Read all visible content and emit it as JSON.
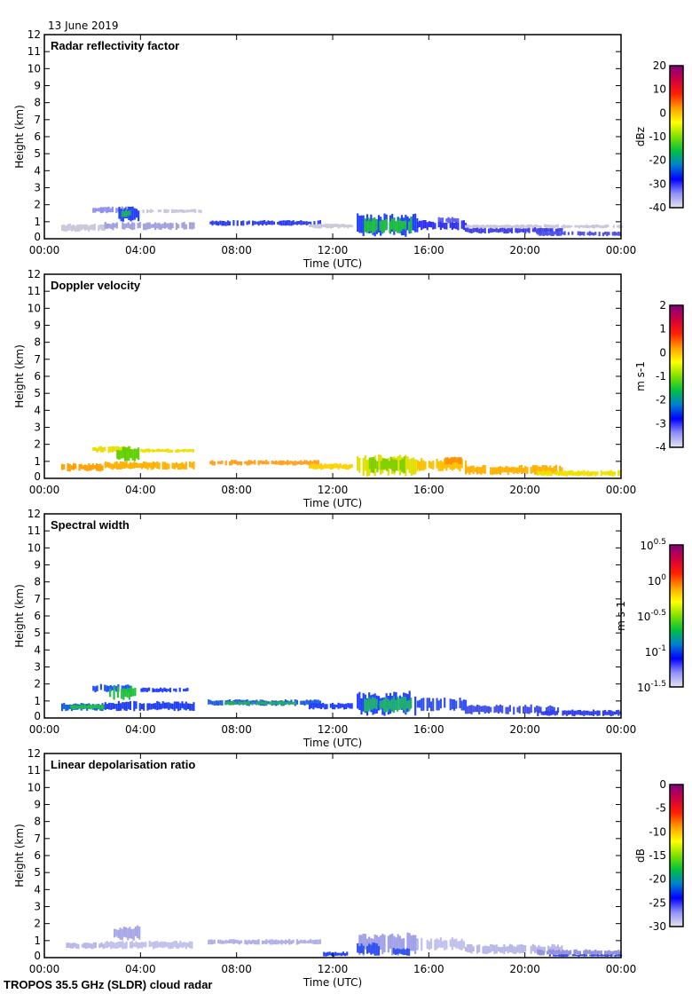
{
  "date_label": "13 June 2019",
  "footer_label": "TROPOS 35.5 GHz (SLDR) cloud radar",
  "chart_data": [
    {
      "type": "heatmap",
      "title": "Radar reflectivity factor",
      "xlabel": "Time (UTC)",
      "ylabel": "Height (km)",
      "xlim": [
        0,
        24
      ],
      "ylim": [
        0,
        12
      ],
      "xticks": [
        "00:00",
        "04:00",
        "08:00",
        "12:00",
        "16:00",
        "20:00",
        "00:00"
      ],
      "yticks": [
        "0",
        "1",
        "2",
        "3",
        "4",
        "5",
        "6",
        "7",
        "8",
        "9",
        "10",
        "11",
        "12"
      ],
      "colorbar": {
        "label": "dBz",
        "ticks": [
          "20",
          "10",
          "0",
          "-10",
          "-20",
          "-30",
          "-40"
        ],
        "range": [
          -40,
          20
        ]
      },
      "regions": [
        [
          0.7,
          2.5,
          0.4,
          0.9,
          "#c8c8d8"
        ],
        [
          2.0,
          3.6,
          1.5,
          1.9,
          "#9090f0"
        ],
        [
          3.0,
          3.9,
          1.0,
          1.9,
          "#2040ff"
        ],
        [
          3.2,
          3.6,
          1.2,
          1.8,
          "#20b060"
        ],
        [
          2.5,
          6.2,
          0.5,
          1.0,
          "#a0a0e0"
        ],
        [
          4.0,
          6.5,
          1.5,
          1.75,
          "#c8c8d8"
        ],
        [
          6.8,
          11.5,
          0.75,
          1.1,
          "#3040f0"
        ],
        [
          11.0,
          12.8,
          0.6,
          0.9,
          "#c8c8d8"
        ],
        [
          13.0,
          15.5,
          0.1,
          1.5,
          "#2040ff"
        ],
        [
          13.3,
          15.3,
          0.3,
          1.3,
          "#20c040"
        ],
        [
          15.5,
          17.5,
          0.5,
          1.1,
          "#3030f0"
        ],
        [
          16.3,
          17.2,
          0.9,
          1.3,
          "#6060f0"
        ],
        [
          17.5,
          21.5,
          0.3,
          0.7,
          "#4040e8"
        ],
        [
          20.5,
          24,
          0.15,
          0.45,
          "#5050e8"
        ],
        [
          17.5,
          24,
          0.6,
          0.85,
          "#c8c8d8"
        ]
      ]
    },
    {
      "type": "heatmap",
      "title": "Doppler velocity",
      "xlabel": "Time (UTC)",
      "ylabel": "Height (km)",
      "xlim": [
        0,
        24
      ],
      "ylim": [
        0,
        12
      ],
      "xticks": [
        "00:00",
        "04:00",
        "08:00",
        "12:00",
        "16:00",
        "20:00",
        "00:00"
      ],
      "yticks": [
        "0",
        "1",
        "2",
        "3",
        "4",
        "5",
        "6",
        "7",
        "8",
        "9",
        "10",
        "11",
        "12"
      ],
      "colorbar": {
        "label": "m s-1",
        "ticks": [
          "2",
          "1",
          "0",
          "-1",
          "-2",
          "-3",
          "-4"
        ],
        "range": [
          -4,
          2
        ]
      },
      "regions": [
        [
          0.7,
          2.5,
          0.4,
          0.9,
          "#ffa000"
        ],
        [
          2.0,
          3.6,
          1.5,
          1.9,
          "#e8e000"
        ],
        [
          3.0,
          3.9,
          1.0,
          1.9,
          "#60d000"
        ],
        [
          2.5,
          6.2,
          0.5,
          1.0,
          "#ffb000"
        ],
        [
          4.0,
          6.3,
          1.5,
          1.75,
          "#f0e000"
        ],
        [
          6.8,
          11.5,
          0.75,
          1.1,
          "#ffa020"
        ],
        [
          11.0,
          12.8,
          0.5,
          0.9,
          "#ffd000"
        ],
        [
          13.0,
          15.5,
          0.1,
          1.5,
          "#e0e000"
        ],
        [
          13.5,
          15.0,
          0.3,
          1.3,
          "#80d000"
        ],
        [
          15.5,
          17.5,
          0.4,
          1.2,
          "#ffc000"
        ],
        [
          16.5,
          17.3,
          0.8,
          1.3,
          "#ff9000"
        ],
        [
          17.5,
          21.5,
          0.2,
          0.8,
          "#ffb000"
        ],
        [
          20.5,
          24,
          0.1,
          0.5,
          "#f0e000"
        ]
      ]
    },
    {
      "type": "heatmap",
      "title": "Spectral width",
      "xlabel": "Time (UTC)",
      "ylabel": "Height (km)",
      "xlim": [
        0,
        24
      ],
      "ylim": [
        0,
        12
      ],
      "xticks": [
        "00:00",
        "04:00",
        "08:00",
        "12:00",
        "16:00",
        "20:00",
        "00:00"
      ],
      "yticks": [
        "0",
        "1",
        "2",
        "3",
        "4",
        "5",
        "6",
        "7",
        "8",
        "9",
        "10",
        "11",
        "12"
      ],
      "colorbar": {
        "label": "m s-1",
        "ticks": [
          "10^0.5",
          "10^0",
          "10^-0.5",
          "10^-1",
          "10^-1.5"
        ],
        "range": [
          -1.5,
          0.5
        ]
      },
      "regions": [
        [
          0.7,
          2.5,
          0.4,
          0.9,
          "#1060e0"
        ],
        [
          1.0,
          2.5,
          0.5,
          0.8,
          "#20c040"
        ],
        [
          2.0,
          3.6,
          1.5,
          2.0,
          "#2050ff"
        ],
        [
          2.7,
          3.9,
          1.0,
          2.0,
          "#20c040"
        ],
        [
          2.5,
          6.2,
          0.4,
          1.0,
          "#2040f0"
        ],
        [
          4.0,
          6.0,
          1.5,
          1.8,
          "#2040ff"
        ],
        [
          6.8,
          11.5,
          0.7,
          1.1,
          "#2060e0"
        ],
        [
          7.5,
          10.5,
          0.75,
          1.0,
          "#20b060"
        ],
        [
          11.0,
          12.8,
          0.5,
          0.9,
          "#2040ff"
        ],
        [
          13.0,
          15.5,
          0.1,
          1.6,
          "#2040ff"
        ],
        [
          13.3,
          15.3,
          0.3,
          1.3,
          "#20b070"
        ],
        [
          15.5,
          17.5,
          0.4,
          1.2,
          "#3050f0"
        ],
        [
          17.5,
          21.5,
          0.2,
          0.8,
          "#4050e8"
        ],
        [
          20.5,
          24,
          0.1,
          0.5,
          "#3040e8"
        ]
      ]
    },
    {
      "type": "heatmap",
      "title": "Linear depolarisation ratio",
      "xlabel": "Time (UTC)",
      "ylabel": "Height (km)",
      "xlim": [
        0,
        24
      ],
      "ylim": [
        0,
        12
      ],
      "xticks": [
        "00:00",
        "04:00",
        "08:00",
        "12:00",
        "16:00",
        "20:00",
        "00:00"
      ],
      "yticks": [
        "0",
        "1",
        "2",
        "3",
        "4",
        "5",
        "6",
        "7",
        "8",
        "9",
        "10",
        "11",
        "12"
      ],
      "colorbar": {
        "label": "dB",
        "ticks": [
          "0",
          "-5",
          "-10",
          "-15",
          "-20",
          "-25",
          "-30"
        ],
        "range": [
          -30,
          0
        ]
      },
      "regions": [
        [
          0.9,
          2.5,
          0.5,
          0.9,
          "#b8b8e8"
        ],
        [
          2.8,
          4.0,
          1.0,
          1.9,
          "#a8a8e8"
        ],
        [
          2.5,
          6.2,
          0.5,
          1.0,
          "#c0c0ec"
        ],
        [
          6.8,
          11.5,
          0.75,
          1.1,
          "#b0b0e8"
        ],
        [
          11.6,
          12.6,
          0.05,
          0.35,
          "#2040ff"
        ],
        [
          13.0,
          15.5,
          0.1,
          1.5,
          "#a0a0e8"
        ],
        [
          13.0,
          14.0,
          0.1,
          0.9,
          "#3050f0"
        ],
        [
          14.5,
          15.2,
          0.1,
          0.6,
          "#3050f0"
        ],
        [
          15.5,
          17.5,
          0.4,
          1.2,
          "#c0c0ec"
        ],
        [
          17.5,
          21.5,
          0.2,
          0.8,
          "#b8b8e8"
        ],
        [
          20.5,
          24,
          0.1,
          0.5,
          "#9090e0"
        ],
        [
          21,
          24,
          0.05,
          0.2,
          "#3040f0"
        ]
      ]
    }
  ]
}
